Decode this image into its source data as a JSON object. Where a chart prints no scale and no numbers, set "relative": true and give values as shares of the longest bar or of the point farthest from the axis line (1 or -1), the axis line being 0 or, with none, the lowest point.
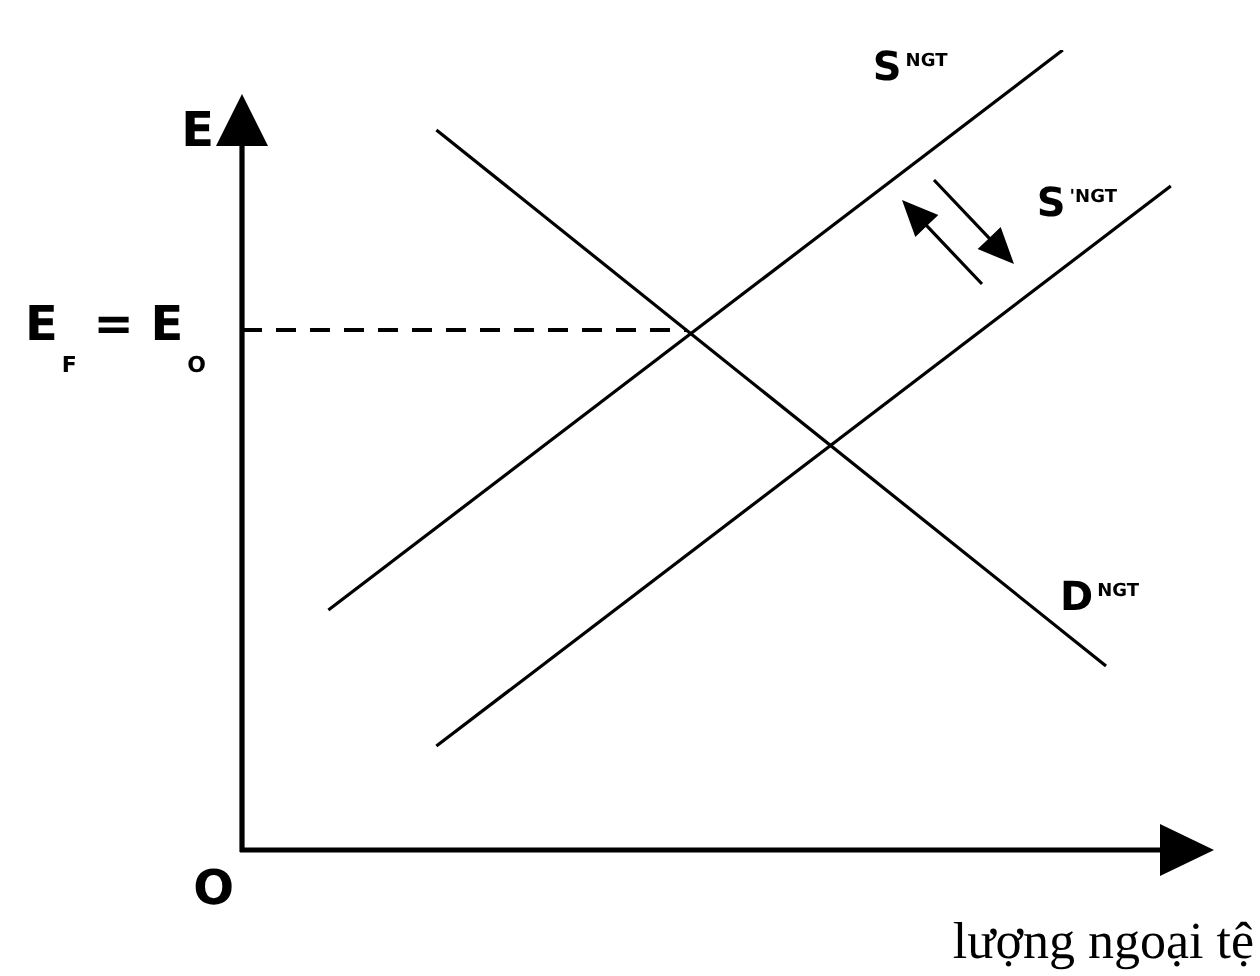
{
  "chart_data": {
    "type": "line",
    "relative": true,
    "xlabel": "lượng ngoại tệ",
    "ylabel": "E",
    "categories": [
      null,
      null,
      null,
      null,
      null,
      null,
      null,
      null,
      null,
      null,
      null,
      null,
      null,
      null,
      null,
      null,
      null,
      null,
      null,
      null,
      null,
      null,
      null,
      null,
      null,
      null,
      null,
      null,
      null,
      null,
      null,
      null,
      null,
      null,
      null,
      null,
      null,
      null,
      null,
      null,
      null,
      null,
      null,
      null,
      null,
      null
    ],
    "series": [
      {
        "name": "S$^{NGT}$",
        "color": "#000000",
        "values": [
          null,
          null,
          null,
          null,
          0.3,
          null,
          null,
          null,
          null,
          null,
          null,
          null,
          null,
          null,
          null,
          null,
          null,
          null,
          null,
          null,
          null,
          null,
          null,
          null,
          null,
          null,
          null,
          null,
          null,
          null,
          null,
          null,
          null,
          null,
          null,
          null,
          null,
          null,
          1.0,
          null,
          null,
          null,
          null,
          null,
          null,
          null
        ]
      },
      {
        "name": "S$^{'NGT}$",
        "color": "#000000",
        "values": [
          null,
          null,
          null,
          null,
          null,
          null,
          null,
          null,
          null,
          0.13,
          null,
          null,
          null,
          null,
          null,
          null,
          null,
          null,
          null,
          null,
          null,
          null,
          null,
          null,
          null,
          null,
          null,
          null,
          null,
          null,
          null,
          null,
          null,
          null,
          null,
          null,
          null,
          null,
          null,
          null,
          null,
          null,
          null,
          0.83,
          null,
          null
        ]
      },
      {
        "name": "D$^{NGT}$",
        "color": "#000000",
        "values": [
          null,
          null,
          null,
          null,
          null,
          null,
          null,
          null,
          null,
          0.9,
          null,
          null,
          null,
          null,
          null,
          null,
          null,
          null,
          null,
          null,
          null,
          null,
          null,
          null,
          null,
          null,
          null,
          null,
          null,
          null,
          null,
          null,
          null,
          null,
          null,
          null,
          null,
          null,
          null,
          null,
          0.23,
          null,
          null,
          null,
          null,
          null
        ]
      }
    ],
    "ref_lines": [
      {
        "axis": "y",
        "value": 0.65,
        "label": "E$_{F}$ = E$_{O}$",
        "line_style": "dashed",
        "color": "#000000"
      }
    ],
    "annotations": [
      "O"
    ],
    "marker": "none",
    "tick_labels": false
  }
}
